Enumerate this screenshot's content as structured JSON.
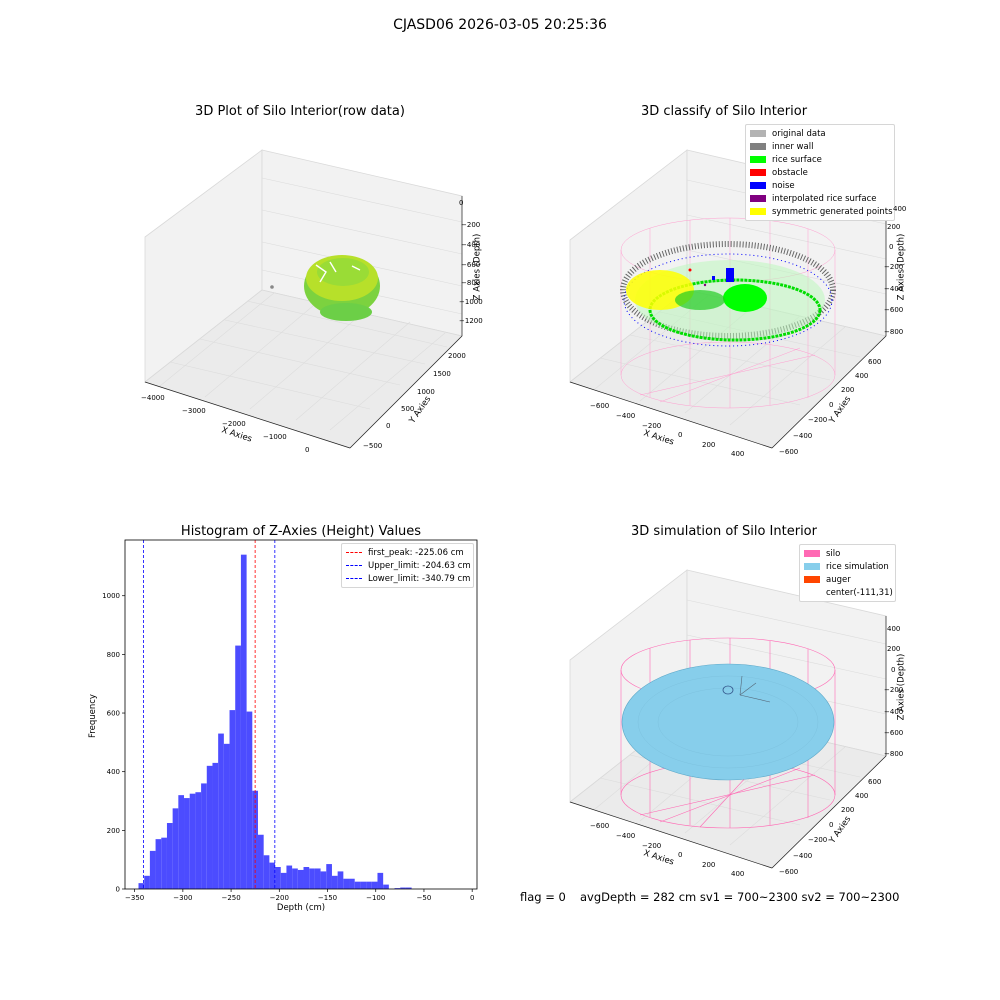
{
  "suptitle": "CJASD06 2026-03-05 20:25:36",
  "colors": {
    "original_data": "#b3b3b3",
    "inner_wall": "#808080",
    "rice_surface": "#00ff00",
    "obstacle": "#ff0000",
    "noise": "#0000ff",
    "interpolated": "#800080",
    "symmetric": "#ffff00",
    "silo": "#ff69b4",
    "rice_sim": "#87ceeb",
    "auger": "#ff4500",
    "hist_bar": "#4c4cff",
    "peak_line": "#ff0000",
    "limit_line": "#0000ff"
  },
  "panel1": {
    "title": "3D Plot of Silo Interior(row data)",
    "xlabel": "X Axies",
    "ylabel": "Y Axies",
    "zlabel": "Z Axies (Depth)",
    "xticks": [
      "−4000",
      "−3000",
      "−2000",
      "−1000",
      "0"
    ],
    "yticks": [
      "−500",
      "0",
      "500",
      "1000",
      "1500",
      "2000"
    ],
    "zticks": [
      "0",
      "−200",
      "−400",
      "−600",
      "−800",
      "−1000",
      "−1200"
    ]
  },
  "panel2": {
    "title": "3D classify of Silo Interior",
    "xlabel": "X Axies",
    "ylabel": "Y Axies",
    "zlabel": "Z Axies (Depth)",
    "xticks": [
      "−600",
      "−400",
      "−200",
      "0",
      "200",
      "400"
    ],
    "yticks": [
      "−600",
      "−400",
      "−200",
      "0",
      "200",
      "400",
      "600"
    ],
    "zticks": [
      "400",
      "200",
      "0",
      "−200",
      "−400",
      "−600",
      "−800"
    ],
    "legend": [
      {
        "label": "original data",
        "color": "#b3b3b3"
      },
      {
        "label": "inner wall",
        "color": "#808080"
      },
      {
        "label": "rice surface",
        "color": "#00ff00"
      },
      {
        "label": "obstacle",
        "color": "#ff0000"
      },
      {
        "label": "noise",
        "color": "#0000ff"
      },
      {
        "label": "interpolated rice surface",
        "color": "#800080"
      },
      {
        "label": "symmetric generated points",
        "color": "#ffff00"
      }
    ]
  },
  "panel4": {
    "title": "3D simulation of Silo Interior",
    "xlabel": "X Axies",
    "ylabel": "Y Axies",
    "zlabel": "Z Axies (Depth)",
    "xticks": [
      "−600",
      "−400",
      "−200",
      "0",
      "200",
      "400"
    ],
    "yticks": [
      "−600",
      "−400",
      "−200",
      "0",
      "200",
      "400",
      "600"
    ],
    "zticks": [
      "400",
      "200",
      "0",
      "−200",
      "−400",
      "−600",
      "−800"
    ],
    "legend": [
      {
        "label": "silo",
        "color": "#ff69b4"
      },
      {
        "label": "rice simulation",
        "color": "#87ceeb"
      },
      {
        "label": "auger",
        "color": "#ff4500"
      },
      {
        "label": "center(-111,31)",
        "color": ""
      }
    ]
  },
  "footer": {
    "flag": "flag = 0",
    "stats": "avgDepth = 282 cm  sv1 = 700~2300  sv2 = 700~2300"
  },
  "chart_data": [
    {
      "type": "bar",
      "title": "Histogram of Z-Axies (Height) Values",
      "xlabel": "Depth (cm)",
      "ylabel": "Frequency",
      "xlim": [
        -360,
        5
      ],
      "ylim": [
        0,
        1190
      ],
      "xticks": [
        -350,
        -300,
        -250,
        -200,
        -150,
        -100,
        -50,
        0
      ],
      "yticks": [
        0,
        200,
        400,
        600,
        800,
        1000
      ],
      "bin_width": 5.9,
      "bin_start": -346,
      "values": [
        20,
        45,
        130,
        170,
        175,
        225,
        275,
        320,
        310,
        325,
        330,
        360,
        420,
        430,
        530,
        495,
        610,
        830,
        1140,
        605,
        335,
        185,
        115,
        90,
        75,
        55,
        80,
        70,
        65,
        75,
        70,
        70,
        60,
        85,
        45,
        60,
        35,
        35,
        25,
        25,
        25,
        25,
        55,
        15,
        0,
        3,
        5,
        5
      ],
      "vlines": [
        {
          "x": -225.06,
          "label": "first_peak: -225.06 cm",
          "color": "#ff0000"
        },
        {
          "x": -204.63,
          "label": "Upper_limit: -204.63 cm",
          "color": "#0000ff"
        },
        {
          "x": -340.79,
          "label": "Lower_limit: -340.79 cm",
          "color": "#0000ff"
        }
      ]
    }
  ]
}
